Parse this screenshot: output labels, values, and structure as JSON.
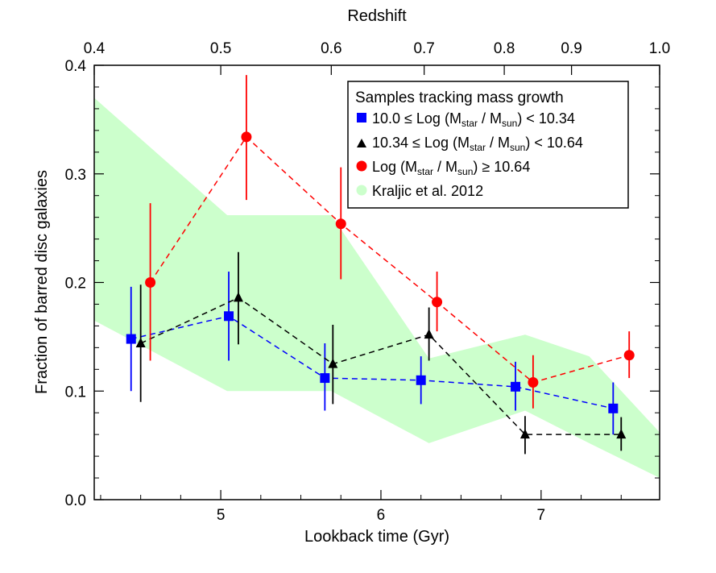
{
  "chart_data": {
    "type": "scatter",
    "title": "",
    "xlabel": "Lookback time (Gyr)",
    "ylabel": "Fraction of barred disc galaxies",
    "top_xlabel": "Redshift",
    "xlim": [
      4.21,
      7.74
    ],
    "ylim": [
      0.0,
      0.4
    ],
    "x_ticks": [
      5,
      6,
      7
    ],
    "x_tick_labels": [
      "5",
      "6",
      "7"
    ],
    "y_ticks": [
      0.0,
      0.1,
      0.2,
      0.3,
      0.4
    ],
    "y_tick_labels": [
      "0.0",
      "0.1",
      "0.2",
      "0.3",
      "0.4"
    ],
    "top_ticks": [
      {
        "x": 4.21,
        "label": "0.4"
      },
      {
        "x": 5.0,
        "label": "0.5"
      },
      {
        "x": 5.69,
        "label": "0.6"
      },
      {
        "x": 6.27,
        "label": "0.7"
      },
      {
        "x": 6.77,
        "label": "0.8"
      },
      {
        "x": 7.19,
        "label": "0.9"
      },
      {
        "x": 7.74,
        "label": "1.0"
      }
    ],
    "legend": {
      "position": "top-right",
      "title": "Samples tracking mass growth",
      "entries": [
        {
          "series": "blue",
          "marker": "square",
          "pre": "10.0 ≤ Log (M",
          "sub1": "star",
          "mid": " / M",
          "sub2": "sun",
          "post": ") < 10.34"
        },
        {
          "series": "black",
          "marker": "triangle",
          "pre": "10.34 ≤ Log (M",
          "sub1": "star",
          "mid": " / M",
          "sub2": "sun",
          "post": ") < 10.64"
        },
        {
          "series": "red",
          "marker": "circle",
          "pre": "Log (M",
          "sub1": "star",
          "mid": " / M",
          "sub2": "sun",
          "post": ") ≥ 10.64"
        },
        {
          "series": "band",
          "marker": "band",
          "text": "Kraljic et al. 2012"
        }
      ]
    },
    "band": {
      "name": "Kraljic et al. 2012",
      "color": "#ccffcc",
      "x": [
        4.21,
        5.04,
        5.69,
        6.3,
        6.9,
        7.3,
        7.74
      ],
      "upper": [
        0.37,
        0.262,
        0.262,
        0.13,
        0.152,
        0.132,
        0.062
      ],
      "lower": [
        0.165,
        0.1,
        0.1,
        0.052,
        0.082,
        0.052,
        0.02
      ]
    },
    "series": [
      {
        "name": "10.0 ≤ Log (Mstar / Msun) < 10.34",
        "color": "#0000ff",
        "marker": "square",
        "x": [
          4.44,
          5.05,
          5.65,
          6.25,
          6.84,
          7.45
        ],
        "y": [
          0.148,
          0.169,
          0.112,
          0.11,
          0.104,
          0.084
        ],
        "y_low": [
          0.1,
          0.128,
          0.082,
          0.088,
          0.082,
          0.06
        ],
        "y_high": [
          0.196,
          0.21,
          0.144,
          0.132,
          0.127,
          0.108
        ]
      },
      {
        "name": "10.34 ≤ Log (Mstar / Msun) < 10.64",
        "color": "#000000",
        "marker": "triangle",
        "x": [
          4.5,
          5.11,
          5.7,
          6.3,
          6.9,
          7.5
        ],
        "y": [
          0.144,
          0.186,
          0.125,
          0.152,
          0.06,
          0.06
        ],
        "y_low": [
          0.09,
          0.143,
          0.088,
          0.128,
          0.042,
          0.045
        ],
        "y_high": [
          0.198,
          0.228,
          0.161,
          0.177,
          0.077,
          0.076
        ]
      },
      {
        "name": "Log (Mstar / Msun) ≥ 10.64",
        "color": "#ff0000",
        "marker": "circle",
        "x": [
          4.56,
          5.16,
          5.75,
          6.35,
          6.95,
          7.55
        ],
        "y": [
          0.2,
          0.334,
          0.254,
          0.182,
          0.108,
          0.133
        ],
        "y_low": [
          0.128,
          0.276,
          0.203,
          0.155,
          0.084,
          0.112
        ],
        "y_high": [
          0.273,
          0.391,
          0.306,
          0.21,
          0.133,
          0.155
        ]
      }
    ]
  }
}
